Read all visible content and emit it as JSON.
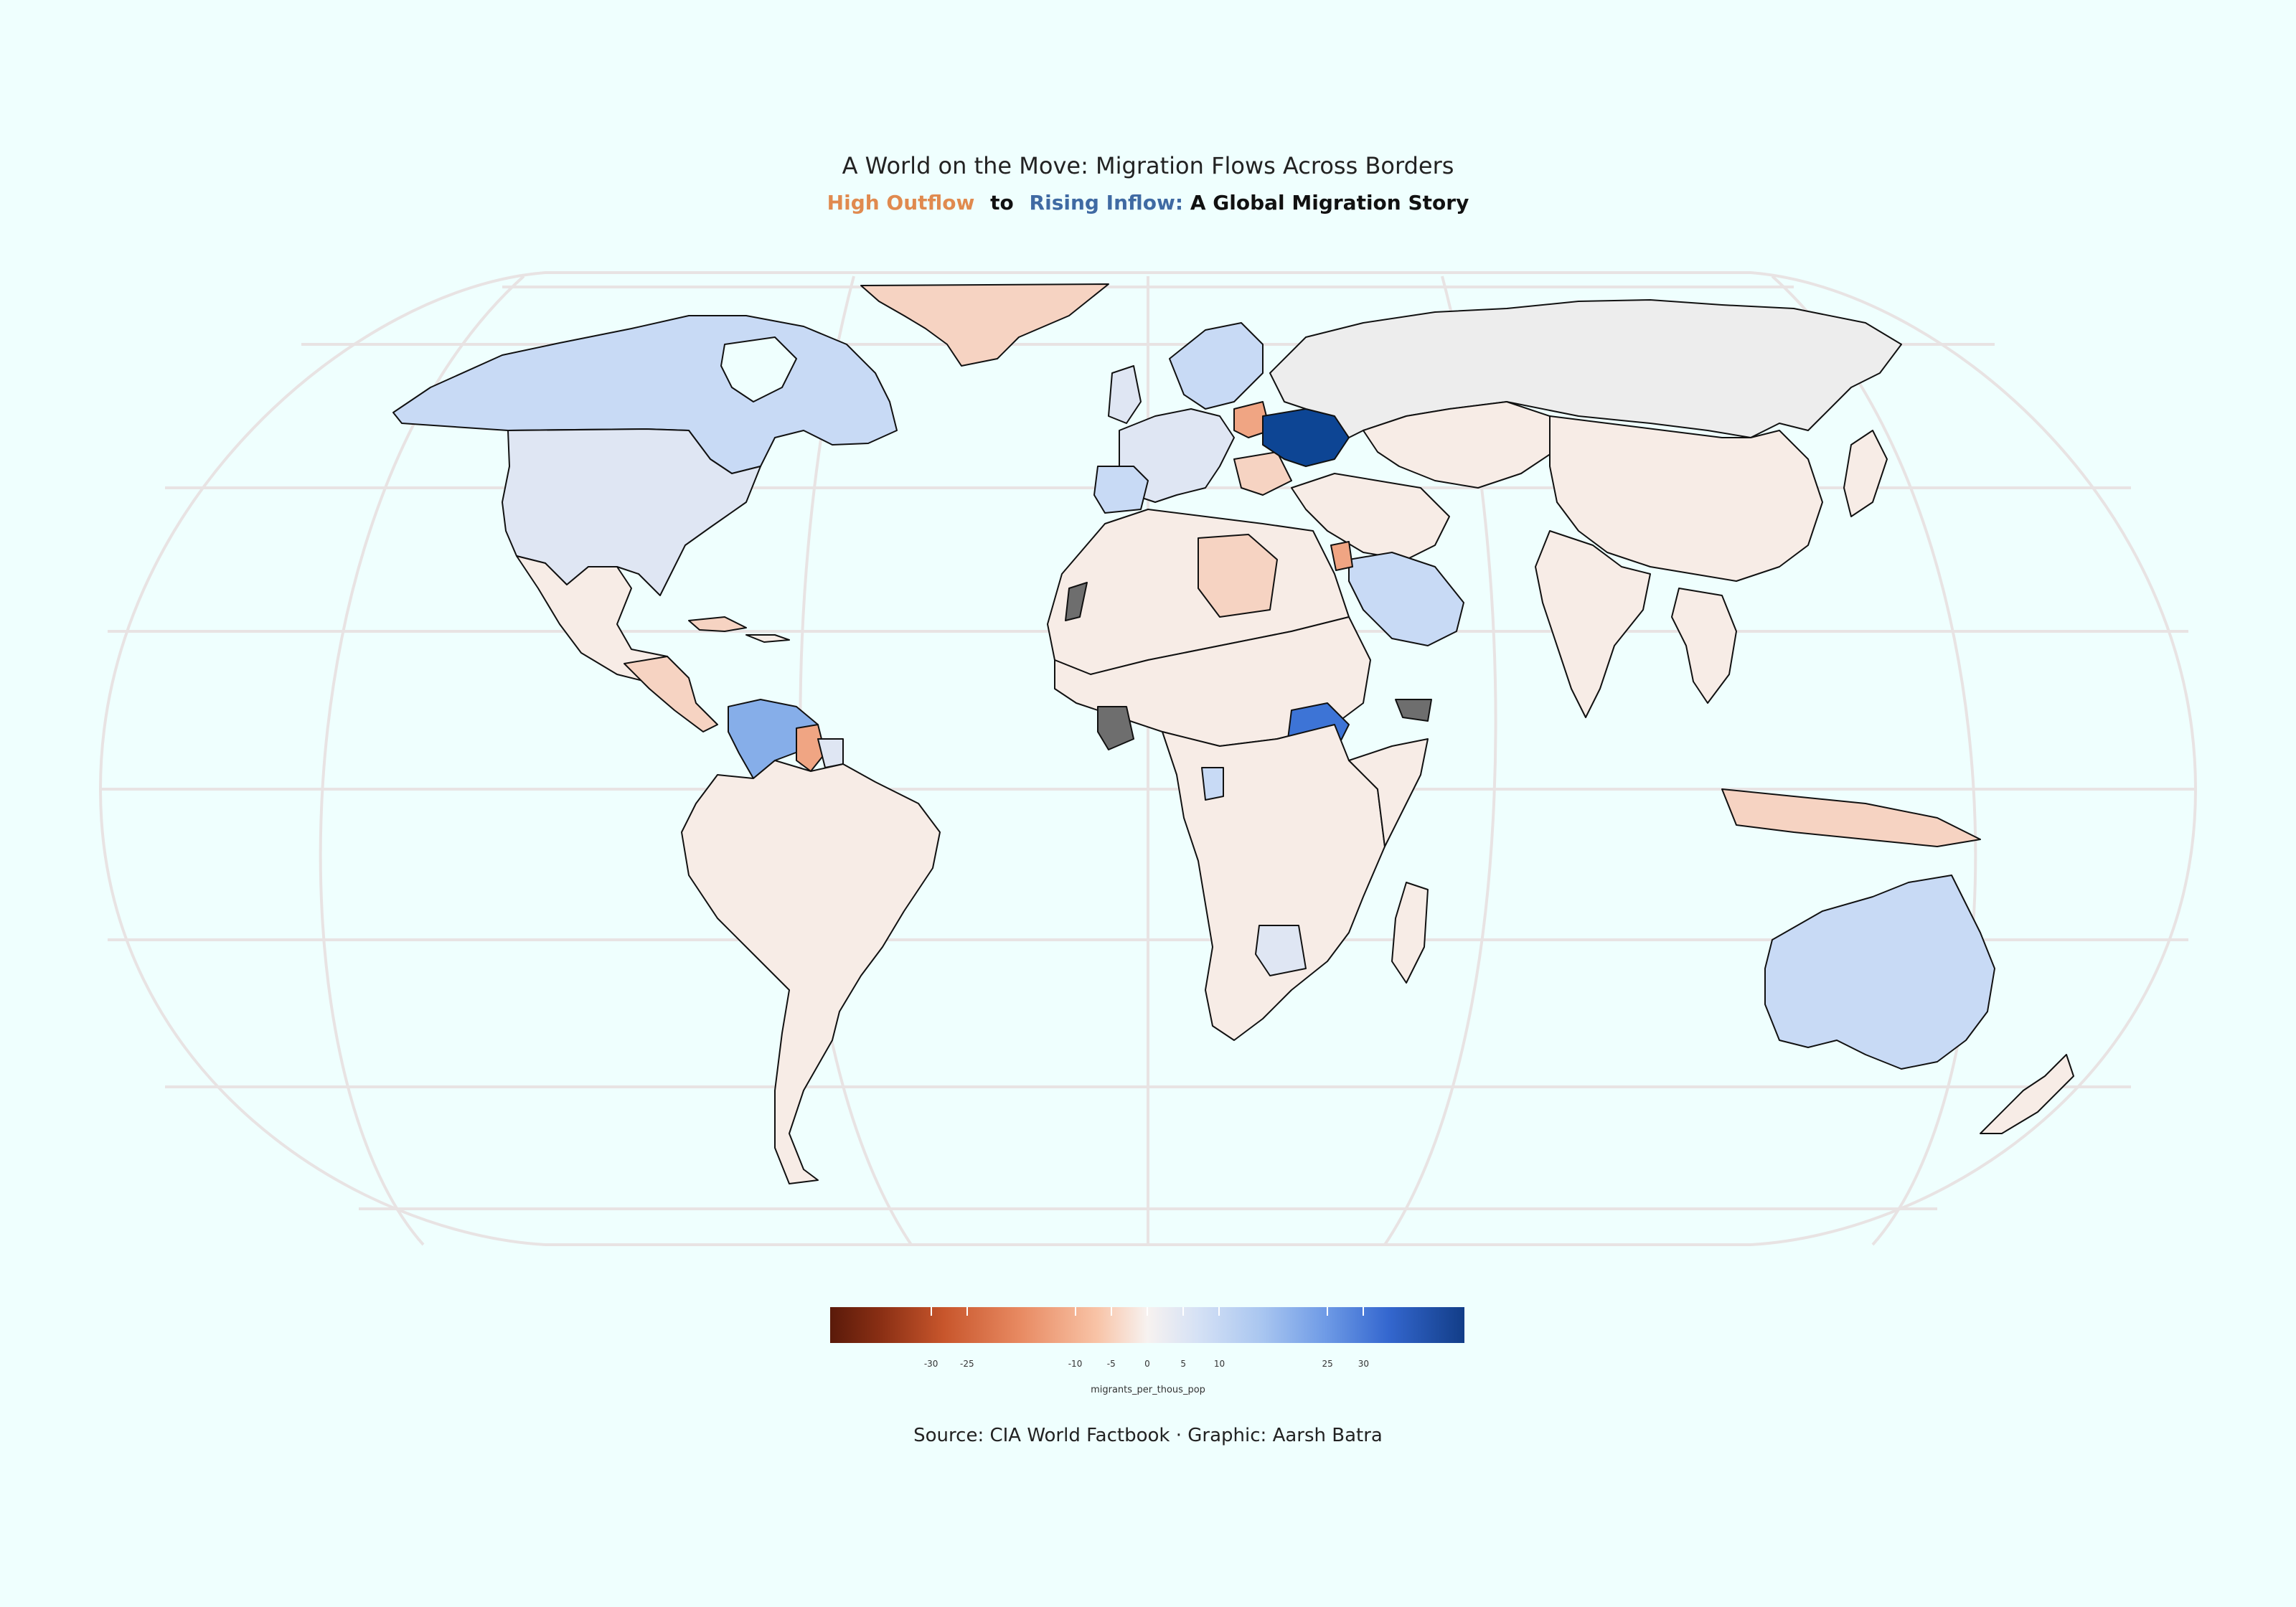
{
  "title": "A World on the Move: Migration Flows Across Borders",
  "subtitle": {
    "outflow": "High Outflow",
    "connector": "to",
    "inflow": "Rising Inflow:",
    "rest": "A Global Migration Story"
  },
  "legend": {
    "title": "migrants_per_thous_pop",
    "ticks": [
      "-30",
      "-25",
      "-10",
      "-5",
      "0",
      "5",
      "10",
      "25",
      "30"
    ],
    "colors": {
      "strong_out": "#5a1a0a",
      "out": "#e88a62",
      "neutral": "#f7f2f0",
      "in": "#a9c6f0",
      "strong_in": "#123d87"
    }
  },
  "source": "Source: CIA World Factbook · Graphic: Aarsh Batra",
  "map_colors": {
    "background": "#effffe",
    "graticule": "#e8e3e3",
    "no_data": "#6e6e6e",
    "mild_out": "#f7ece6",
    "moderate_out": "#f6d3c2",
    "high_out": "#f0a583",
    "mild_in": "#dfe6f3",
    "moderate_in": "#c8daf5",
    "high_in": "#86aee9",
    "very_high_in": "#3d74d6",
    "extreme_in": "#0d4594"
  }
}
